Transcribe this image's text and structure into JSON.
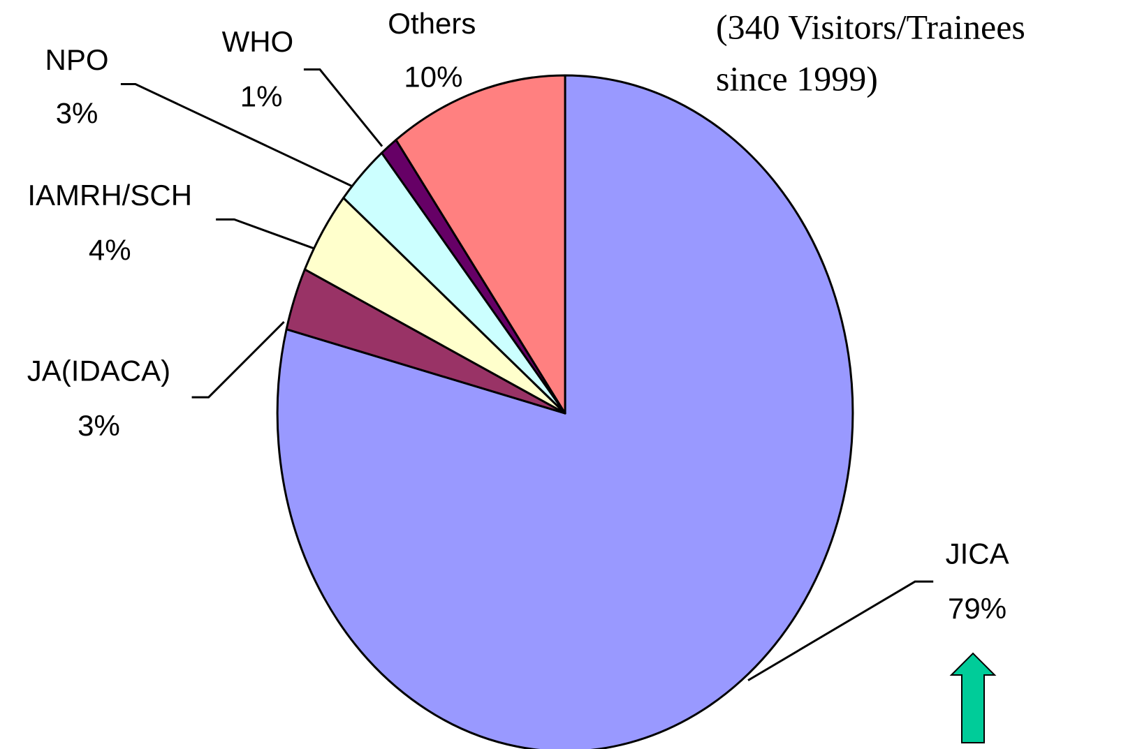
{
  "chart_data": {
    "type": "pie",
    "annotation": [
      "(340  Visitors/Trainees",
      "since 1999)"
    ],
    "categories": [
      "JICA",
      "JA(IDACA)",
      "IAMRH/SCH",
      "NPO",
      "WHO",
      "Others"
    ],
    "values": [
      79,
      3,
      4,
      3,
      1,
      10
    ],
    "value_labels": [
      "79%",
      "3%",
      "4%",
      "3%",
      "1%",
      "10%"
    ],
    "colors": [
      "#9999ff",
      "#993366",
      "#ffffcc",
      "#ccffff",
      "#660066",
      "#ff8080"
    ]
  }
}
